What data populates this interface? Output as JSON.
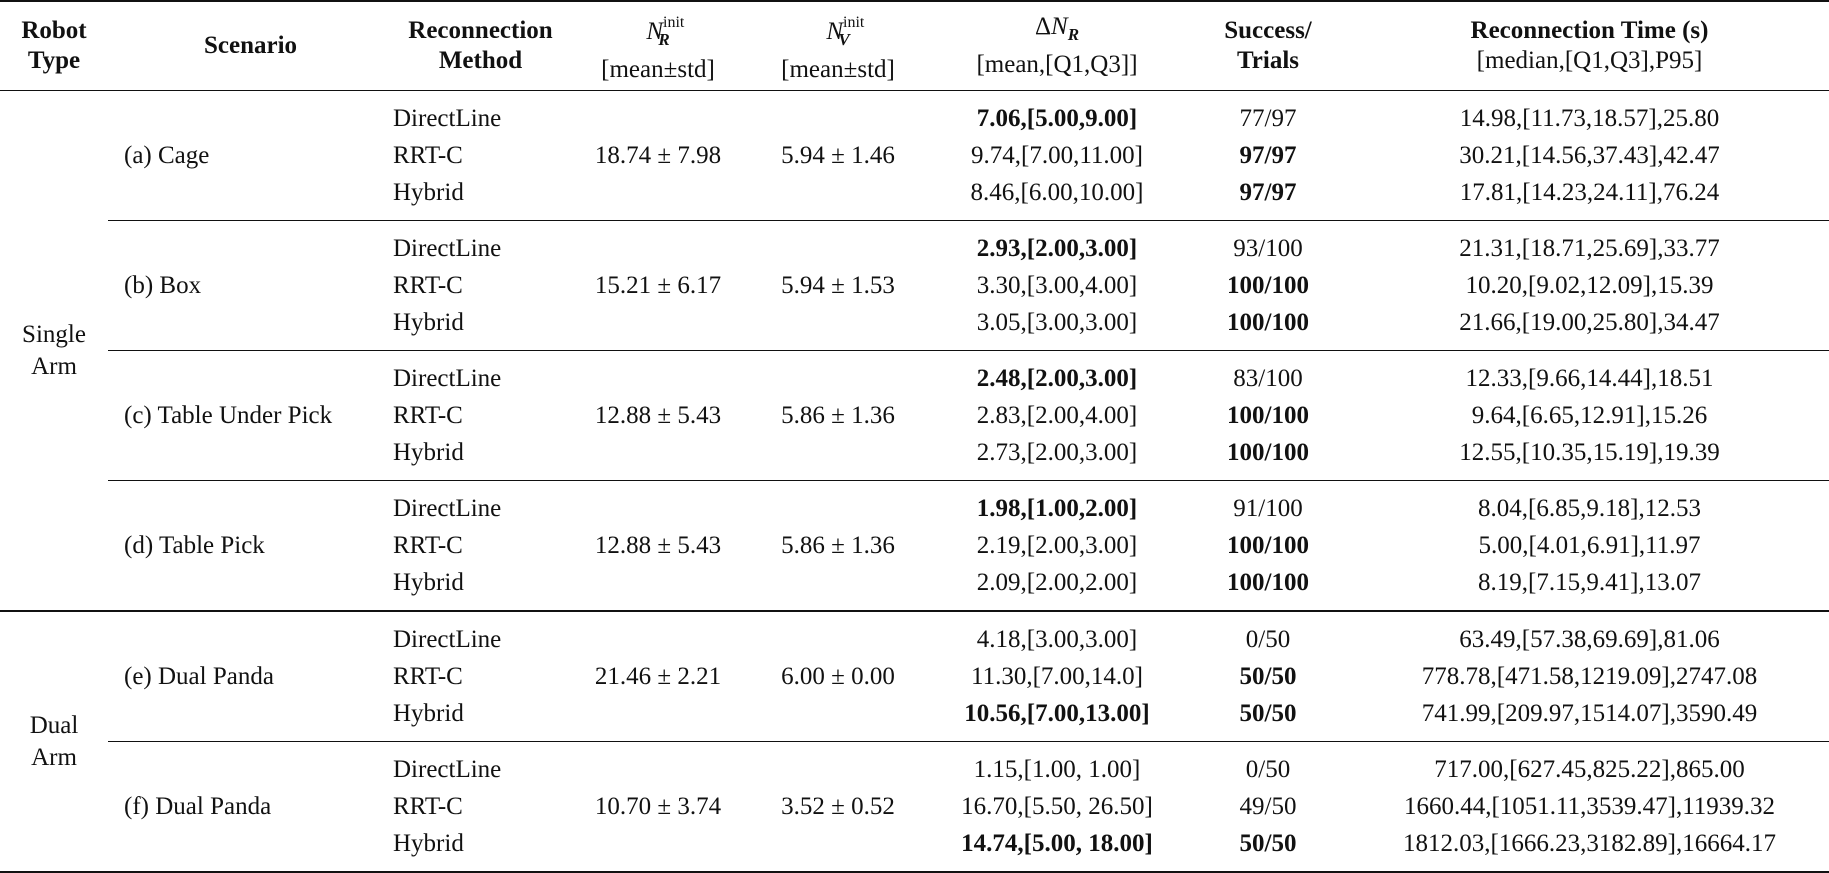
{
  "header": {
    "robot_type": [
      "Robot",
      "Type"
    ],
    "scenario": "Scenario",
    "method": [
      "Reconnection",
      "Method"
    ],
    "nr_init": {
      "symbol": "N",
      "sup": "init",
      "sub": "R",
      "stat": "[mean±std]"
    },
    "nv_init": {
      "symbol": "N",
      "sup": "init",
      "sub": "V",
      "stat": "[mean±std]"
    },
    "delta_nr": {
      "delta": "Δ",
      "symbol": "N",
      "sub": "R",
      "stat": "[mean,[Q1,Q3]]"
    },
    "success": [
      "Success/",
      "Trials"
    ],
    "time": [
      "Reconnection Time (s)",
      "[median,[Q1,Q3],P95]"
    ]
  },
  "groups": [
    {
      "robot_type": [
        "Single",
        "Arm"
      ],
      "scenarios": [
        {
          "name": "(a) Cage",
          "nr": "18.74 ± 7.98",
          "nv": "5.94 ± 1.46",
          "rows": [
            {
              "method": "DirectLine",
              "delta": "7.06,[5.00,9.00]",
              "delta_bold": true,
              "success": "77/97",
              "success_bold": false,
              "time": "14.98,[11.73,18.57],25.80"
            },
            {
              "method": "RRT-C",
              "delta": "9.74,[7.00,11.00]",
              "delta_bold": false,
              "success": "97/97",
              "success_bold": true,
              "time": "30.21,[14.56,37.43],42.47"
            },
            {
              "method": "Hybrid",
              "delta": "8.46,[6.00,10.00]",
              "delta_bold": false,
              "success": "97/97",
              "success_bold": true,
              "time": "17.81,[14.23,24.11],76.24"
            }
          ]
        },
        {
          "name": "(b) Box",
          "nr": "15.21 ± 6.17",
          "nv": "5.94 ± 1.53",
          "rows": [
            {
              "method": "DirectLine",
              "delta": "2.93,[2.00,3.00]",
              "delta_bold": true,
              "success": "93/100",
              "success_bold": false,
              "time": "21.31,[18.71,25.69],33.77"
            },
            {
              "method": "RRT-C",
              "delta": "3.30,[3.00,4.00]",
              "delta_bold": false,
              "success": "100/100",
              "success_bold": true,
              "time": "10.20,[9.02,12.09],15.39"
            },
            {
              "method": "Hybrid",
              "delta": "3.05,[3.00,3.00]",
              "delta_bold": false,
              "success": "100/100",
              "success_bold": true,
              "time": "21.66,[19.00,25.80],34.47"
            }
          ]
        },
        {
          "name": "(c) Table Under Pick",
          "nr": "12.88 ± 5.43",
          "nv": "5.86 ± 1.36",
          "rows": [
            {
              "method": "DirectLine",
              "delta": "2.48,[2.00,3.00]",
              "delta_bold": true,
              "success": "83/100",
              "success_bold": false,
              "time": "12.33,[9.66,14.44],18.51"
            },
            {
              "method": "RRT-C",
              "delta": "2.83,[2.00,4.00]",
              "delta_bold": false,
              "success": "100/100",
              "success_bold": true,
              "time": "9.64,[6.65,12.91],15.26"
            },
            {
              "method": "Hybrid",
              "delta": "2.73,[2.00,3.00]",
              "delta_bold": false,
              "success": "100/100",
              "success_bold": true,
              "time": "12.55,[10.35,15.19],19.39"
            }
          ]
        },
        {
          "name": "(d) Table Pick",
          "nr": "12.88 ± 5.43",
          "nv": "5.86 ± 1.36",
          "rows": [
            {
              "method": "DirectLine",
              "delta": "1.98,[1.00,2.00]",
              "delta_bold": true,
              "success": "91/100",
              "success_bold": false,
              "time": "8.04,[6.85,9.18],12.53"
            },
            {
              "method": "RRT-C",
              "delta": "2.19,[2.00,3.00]",
              "delta_bold": false,
              "success": "100/100",
              "success_bold": true,
              "time": "5.00,[4.01,6.91],11.97"
            },
            {
              "method": "Hybrid",
              "delta": "2.09,[2.00,2.00]",
              "delta_bold": false,
              "success": "100/100",
              "success_bold": true,
              "time": "8.19,[7.15,9.41],13.07"
            }
          ]
        }
      ]
    },
    {
      "robot_type": [
        "Dual",
        "Arm"
      ],
      "scenarios": [
        {
          "name": "(e) Dual Panda",
          "nr": "21.46 ± 2.21",
          "nv": "6.00 ± 0.00",
          "rows": [
            {
              "method": "DirectLine",
              "delta": "4.18,[3.00,3.00]",
              "delta_bold": false,
              "success": "0/50",
              "success_bold": false,
              "time": "63.49,[57.38,69.69],81.06"
            },
            {
              "method": "RRT-C",
              "delta": "11.30,[7.00,14.0]",
              "delta_bold": false,
              "success": "50/50",
              "success_bold": true,
              "time": "778.78,[471.58,1219.09],2747.08"
            },
            {
              "method": "Hybrid",
              "delta": "10.56,[7.00,13.00]",
              "delta_bold": true,
              "success": "50/50",
              "success_bold": true,
              "time": "741.99,[209.97,1514.07],3590.49"
            }
          ]
        },
        {
          "name": "(f) Dual Panda",
          "nr": "10.70 ± 3.74",
          "nv": "3.52 ± 0.52",
          "rows": [
            {
              "method": "DirectLine",
              "delta": "1.15,[1.00, 1.00]",
              "delta_bold": false,
              "success": "0/50",
              "success_bold": false,
              "time": "717.00,[627.45,825.22],865.00"
            },
            {
              "method": "RRT-C",
              "delta": "16.70,[5.50, 26.50]",
              "delta_bold": false,
              "success": "49/50",
              "success_bold": false,
              "time": "1660.44,[1051.11,3539.47],11939.32"
            },
            {
              "method": "Hybrid",
              "delta": "14.74,[5.00, 18.00]",
              "delta_bold": true,
              "success": "50/50",
              "success_bold": true,
              "time": "1812.03,[1666.23,3182.89],16664.17"
            }
          ]
        }
      ]
    }
  ]
}
